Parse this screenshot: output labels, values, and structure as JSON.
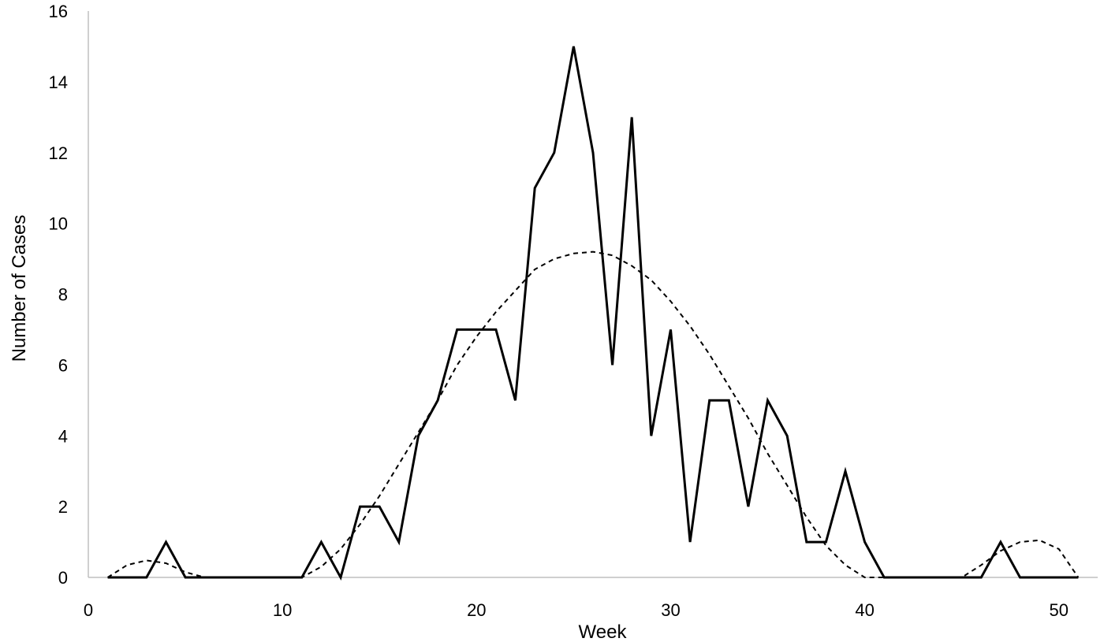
{
  "chart_data": {
    "type": "line",
    "title": "",
    "xlabel": "Week",
    "ylabel": "Number of Cases",
    "xlim": [
      0,
      52
    ],
    "ylim": [
      0,
      16
    ],
    "x_ticks": [
      0,
      10,
      20,
      30,
      40,
      50
    ],
    "y_ticks": [
      0,
      2,
      4,
      6,
      8,
      10,
      12,
      14,
      16
    ],
    "grid": false,
    "legend": "none",
    "series": [
      {
        "style": "solid",
        "color": "#000000",
        "x": [
          1,
          2,
          3,
          4,
          5,
          6,
          7,
          8,
          9,
          10,
          11,
          12,
          13,
          14,
          15,
          16,
          17,
          18,
          19,
          20,
          21,
          22,
          23,
          24,
          25,
          26,
          27,
          28,
          29,
          30,
          31,
          32,
          33,
          34,
          35,
          36,
          37,
          38,
          39,
          40,
          41,
          42,
          43,
          44,
          45,
          46,
          47,
          48,
          49,
          50,
          51
        ],
        "values": [
          0,
          0,
          0,
          1,
          0,
          0,
          0,
          0,
          0,
          0,
          0,
          1,
          0,
          2,
          2,
          1,
          4,
          5,
          7,
          7,
          7,
          5,
          11,
          12,
          15,
          12,
          6,
          13,
          4,
          7,
          1,
          5,
          5,
          2,
          5,
          4,
          1,
          1,
          3,
          1,
          0,
          0,
          0,
          0,
          0,
          0,
          1,
          0,
          0,
          0,
          0
        ]
      },
      {
        "style": "dashed",
        "color": "#000000",
        "x": [
          1,
          2,
          3,
          4,
          5,
          6,
          7,
          8,
          9,
          10,
          11,
          12,
          13,
          14,
          15,
          16,
          17,
          18,
          19,
          20,
          21,
          22,
          23,
          24,
          25,
          26,
          27,
          28,
          29,
          30,
          31,
          32,
          33,
          34,
          35,
          36,
          37,
          38,
          39,
          40,
          45,
          46,
          47,
          48,
          49,
          50,
          51
        ],
        "values": [
          0,
          0.35,
          0.48,
          0.4,
          0.15,
          0,
          0,
          0,
          0,
          0,
          0,
          0.3,
          0.8,
          1.5,
          2.3,
          3.2,
          4.1,
          5.0,
          6.0,
          6.8,
          7.5,
          8.1,
          8.7,
          9.0,
          9.15,
          9.2,
          9.1,
          8.8,
          8.4,
          7.8,
          7.1,
          6.3,
          5.4,
          4.5,
          3.5,
          2.6,
          1.7,
          0.9,
          0.35,
          0,
          0,
          0.35,
          0.75,
          1.0,
          1.05,
          0.8,
          0
        ]
      }
    ]
  }
}
